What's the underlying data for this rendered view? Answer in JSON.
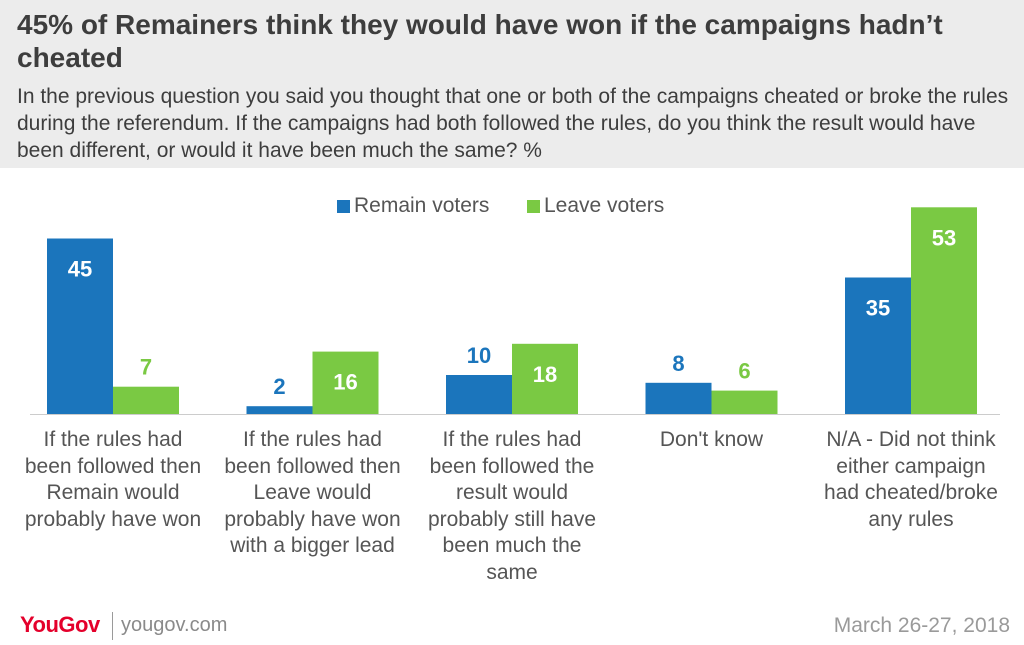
{
  "title": "45% of Remainers think they would have won if the campaigns hadn’t cheated",
  "subtitle": "In the previous question you said you thought that one or both of the campaigns cheated or broke the rules during the referendum. If the campaigns had both followed the rules, do you think the result would have been different, or would it have been much the same? %",
  "legend": {
    "remain": "Remain voters",
    "leave": "Leave voters"
  },
  "colors": {
    "remain": "#1b75bc",
    "leave": "#7ac943",
    "header_bg": "#ececec",
    "text": "#3d3d3d",
    "brand": "#e4002b"
  },
  "chart_data": {
    "type": "bar",
    "title": "45% of Remainers think they would have won if the campaigns hadn’t cheated",
    "categories": [
      "If the rules had been followed then Remain would probably have won",
      "If the rules had been followed then Leave would probably have won with a bigger lead",
      "If the rules had been followed the result would probably still have been much the same",
      "Don't know",
      "N/A - Did not think either campaign had cheated/broke any rules"
    ],
    "series": [
      {
        "name": "Remain voters",
        "values": [
          45,
          2,
          10,
          8,
          35
        ]
      },
      {
        "name": "Leave voters",
        "values": [
          7,
          16,
          18,
          6,
          53
        ]
      }
    ],
    "ylim": [
      0,
      55
    ],
    "grid": false,
    "legend_position": "top-center",
    "xlabel": "",
    "ylabel": ""
  },
  "footer": {
    "logo": "YouGov",
    "site": "yougov.com",
    "date": "March 26-27, 2018"
  }
}
